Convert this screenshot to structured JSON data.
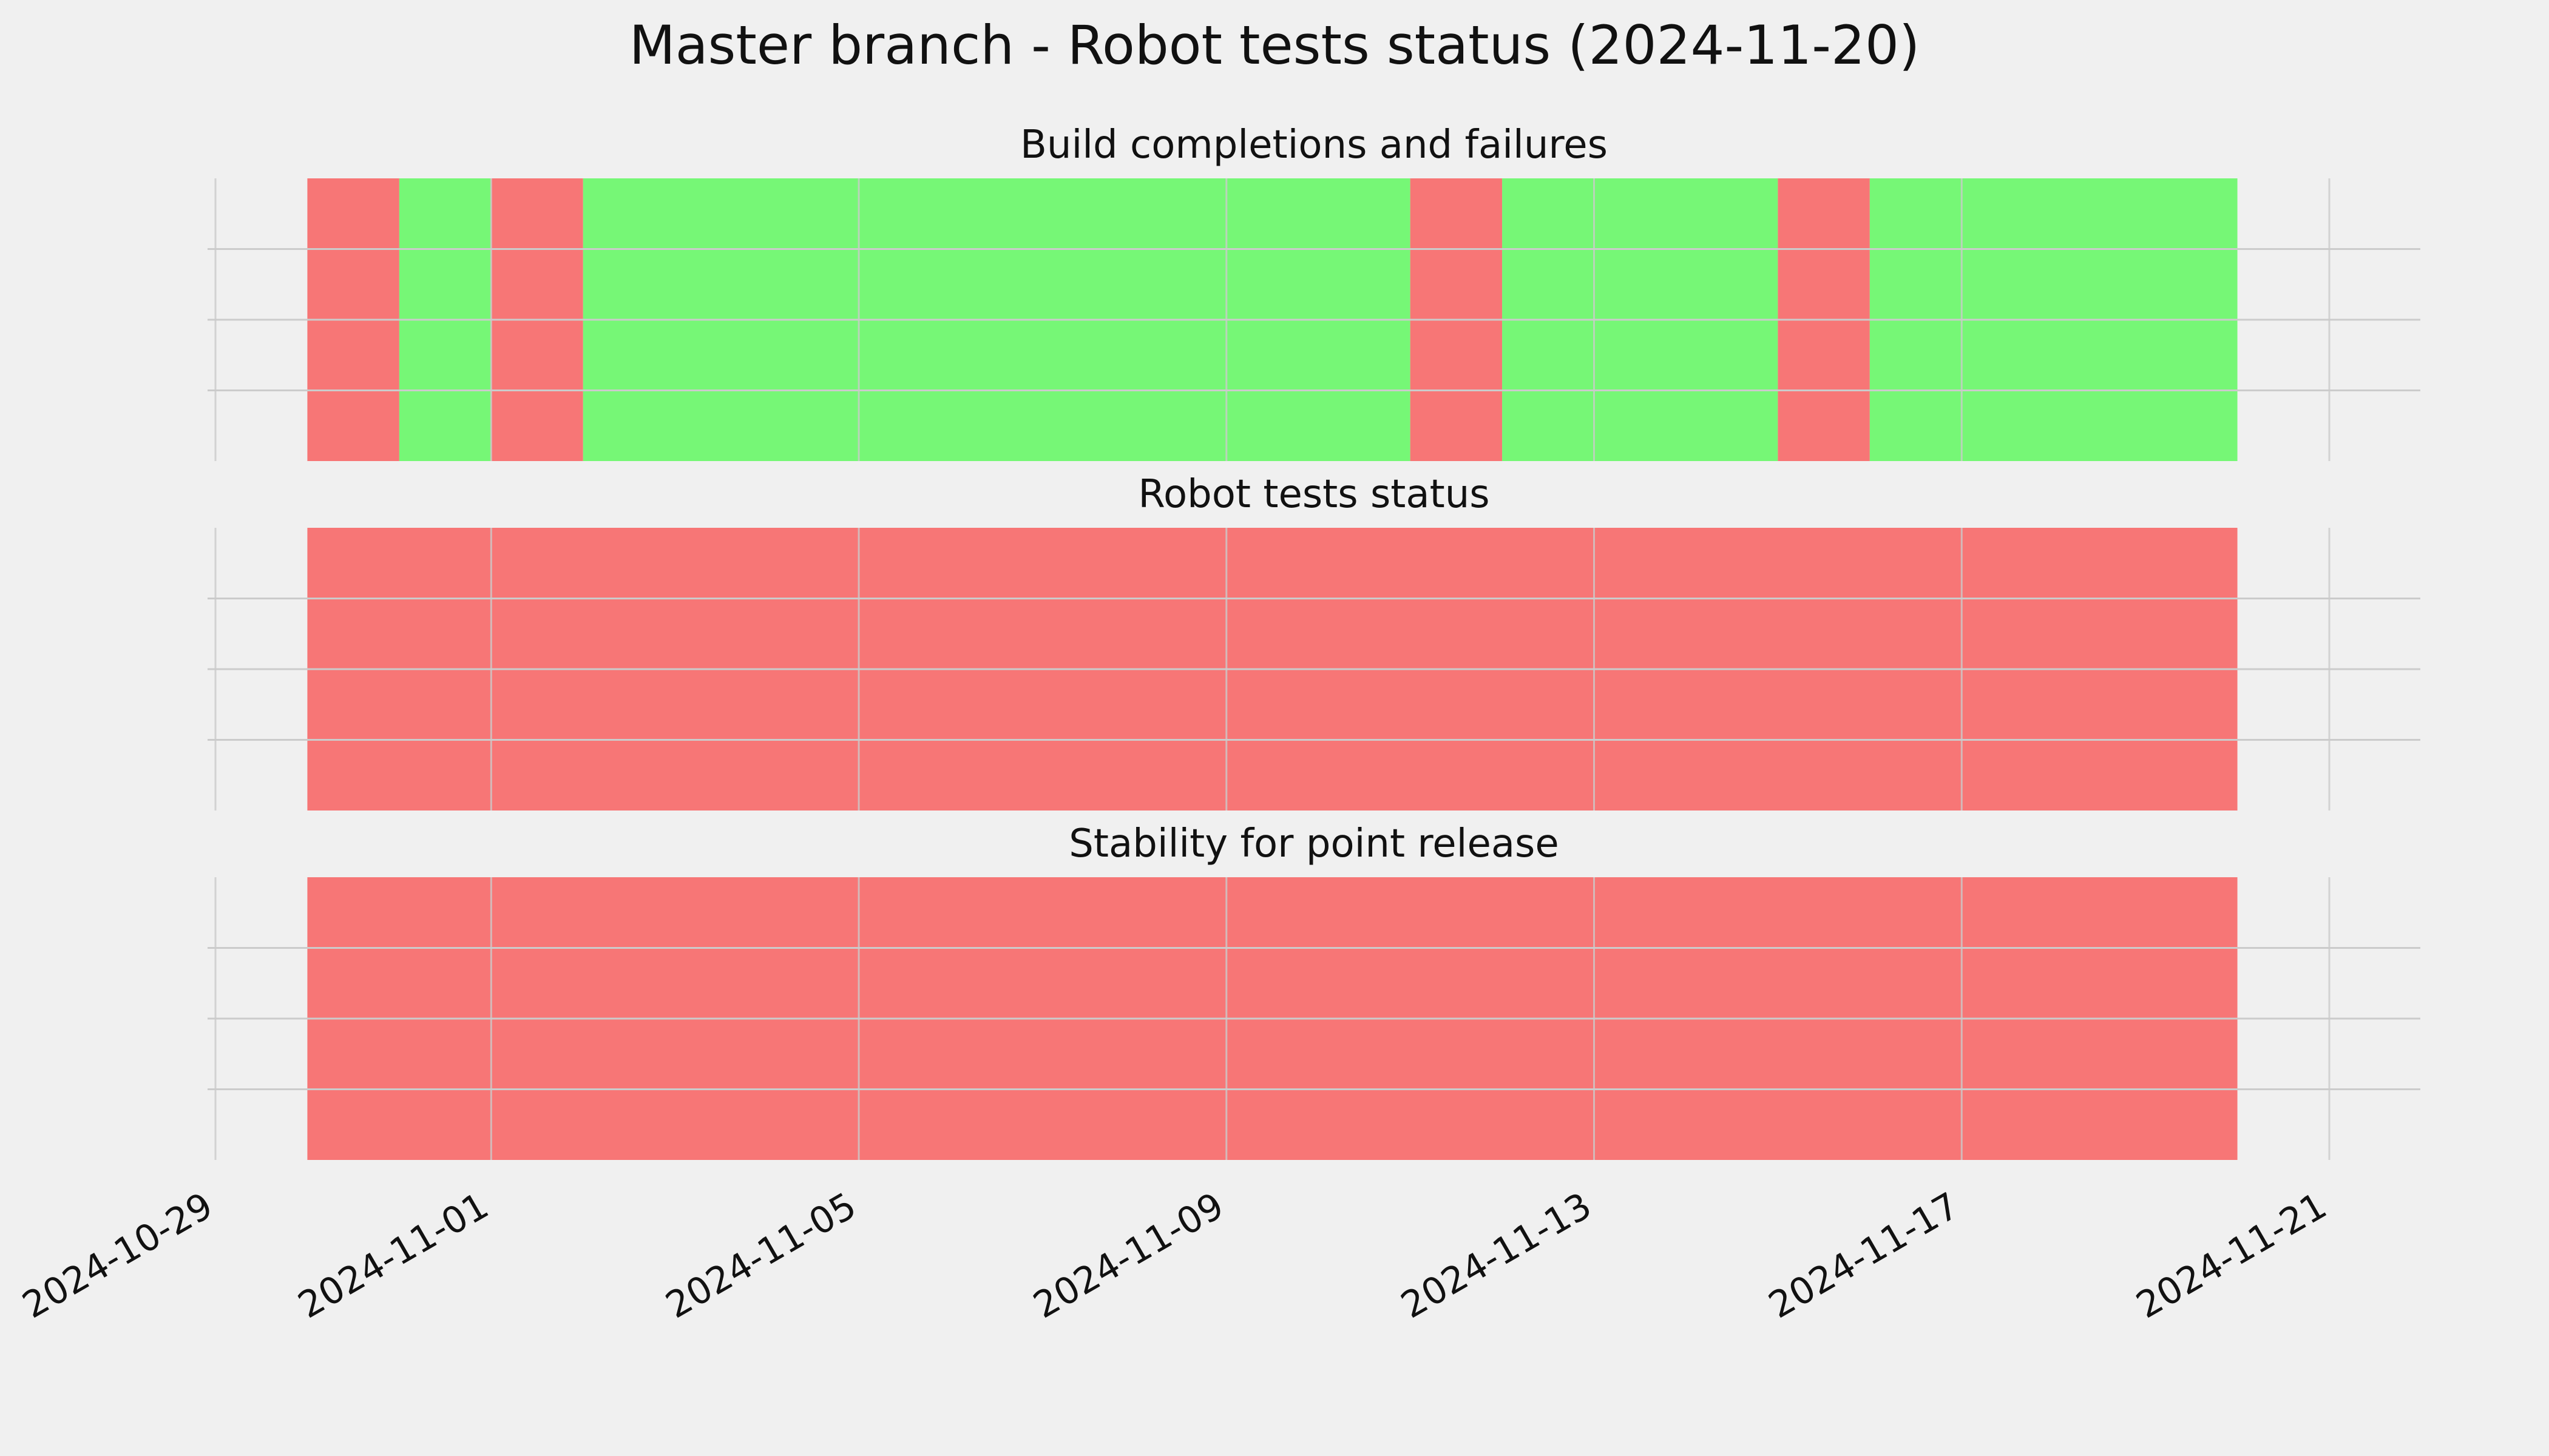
{
  "title": "Master branch - Robot tests status (2024-11-20)",
  "colors": {
    "background": "#f0f0f0",
    "pass": "#76f776",
    "fail": "#f77676",
    "grid": "#cbcbcb"
  },
  "chart_data": [
    {
      "type": "bar",
      "subtype": "status-timeline",
      "title": "Build completions and failures",
      "x_type": "date",
      "xlim": [
        "2024-10-29",
        "2024-11-21"
      ],
      "x_ticks": [
        "2024-10-29",
        "2024-11-01",
        "2024-11-05",
        "2024-11-09",
        "2024-11-13",
        "2024-11-17",
        "2024-11-21"
      ],
      "grid": true,
      "segments": [
        {
          "start": "2024-10-30",
          "end": "2024-10-31",
          "status": "fail"
        },
        {
          "start": "2024-10-31",
          "end": "2024-11-01",
          "status": "pass"
        },
        {
          "start": "2024-11-01",
          "end": "2024-11-02",
          "status": "fail"
        },
        {
          "start": "2024-11-02",
          "end": "2024-11-11",
          "status": "pass"
        },
        {
          "start": "2024-11-11",
          "end": "2024-11-12",
          "status": "fail"
        },
        {
          "start": "2024-11-12",
          "end": "2024-11-15",
          "status": "pass"
        },
        {
          "start": "2024-11-15",
          "end": "2024-11-16",
          "status": "fail"
        },
        {
          "start": "2024-11-16",
          "end": "2024-11-20",
          "status": "pass"
        }
      ]
    },
    {
      "type": "bar",
      "subtype": "status-timeline",
      "title": "Robot tests status",
      "x_type": "date",
      "xlim": [
        "2024-10-29",
        "2024-11-21"
      ],
      "grid": true,
      "segments": [
        {
          "start": "2024-10-30",
          "end": "2024-11-20",
          "status": "fail"
        }
      ]
    },
    {
      "type": "bar",
      "subtype": "status-timeline",
      "title": "Stability for point release",
      "x_type": "date",
      "xlim": [
        "2024-10-29",
        "2024-11-21"
      ],
      "grid": true,
      "segments": [
        {
          "start": "2024-10-30",
          "end": "2024-11-20",
          "status": "fail"
        }
      ]
    }
  ]
}
